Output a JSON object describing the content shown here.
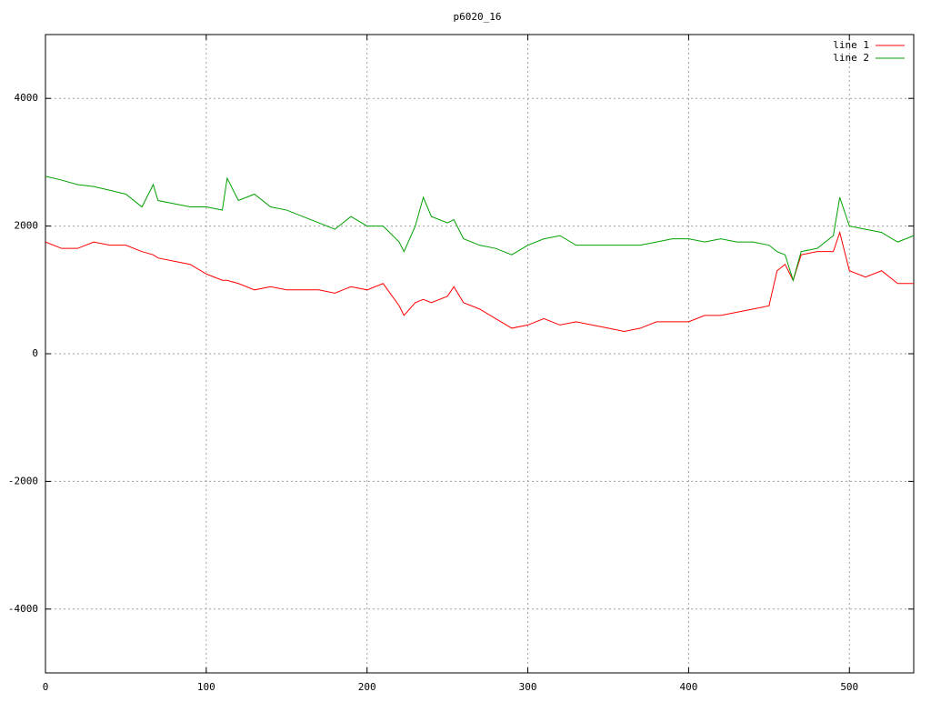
{
  "chart_data": {
    "type": "line",
    "title": "p6020_16",
    "x": [
      0,
      10,
      20,
      30,
      40,
      50,
      60,
      67,
      70,
      80,
      90,
      100,
      110,
      113,
      120,
      130,
      140,
      150,
      160,
      170,
      180,
      190,
      200,
      210,
      220,
      223,
      230,
      235,
      240,
      250,
      254,
      260,
      270,
      280,
      290,
      300,
      310,
      320,
      330,
      340,
      350,
      360,
      370,
      380,
      390,
      400,
      410,
      420,
      430,
      440,
      450,
      455,
      460,
      465,
      470,
      480,
      490,
      494,
      500,
      510,
      520,
      530,
      540
    ],
    "series": [
      {
        "name": "line 1",
        "color": "#ff0000",
        "values": [
          1750,
          1650,
          1650,
          1750,
          1700,
          1700,
          1600,
          1550,
          1500,
          1450,
          1400,
          1250,
          1150,
          1150,
          1100,
          1000,
          1050,
          1000,
          1000,
          1000,
          950,
          1050,
          1000,
          1100,
          750,
          600,
          800,
          850,
          800,
          900,
          1050,
          800,
          700,
          550,
          400,
          450,
          550,
          450,
          500,
          450,
          400,
          350,
          400,
          500,
          500,
          500,
          600,
          600,
          650,
          700,
          750,
          1300,
          1400,
          1150,
          1550,
          1600,
          1600,
          1900,
          1300,
          1200,
          1300,
          1100,
          1100
        ]
      },
      {
        "name": "line 2",
        "color": "#00a000",
        "values": [
          2780,
          2720,
          2650,
          2620,
          2560,
          2500,
          2300,
          2650,
          2400,
          2350,
          2300,
          2300,
          2250,
          2750,
          2400,
          2500,
          2300,
          2250,
          2150,
          2050,
          1950,
          2150,
          2000,
          2000,
          1750,
          1600,
          2000,
          2450,
          2150,
          2050,
          2100,
          1800,
          1700,
          1650,
          1550,
          1700,
          1800,
          1850,
          1700,
          1700,
          1700,
          1700,
          1700,
          1750,
          1800,
          1800,
          1750,
          1800,
          1750,
          1750,
          1700,
          1600,
          1550,
          1150,
          1600,
          1650,
          1850,
          2450,
          2000,
          1950,
          1900,
          1750,
          1850
        ]
      }
    ],
    "xlim": [
      0,
      540
    ],
    "ylim": [
      -5000,
      5000
    ],
    "xticks": [
      0,
      100,
      200,
      300,
      400,
      500
    ],
    "yticks": [
      -4000,
      -2000,
      0,
      2000,
      4000
    ],
    "grid": true,
    "legend": "top-right"
  }
}
